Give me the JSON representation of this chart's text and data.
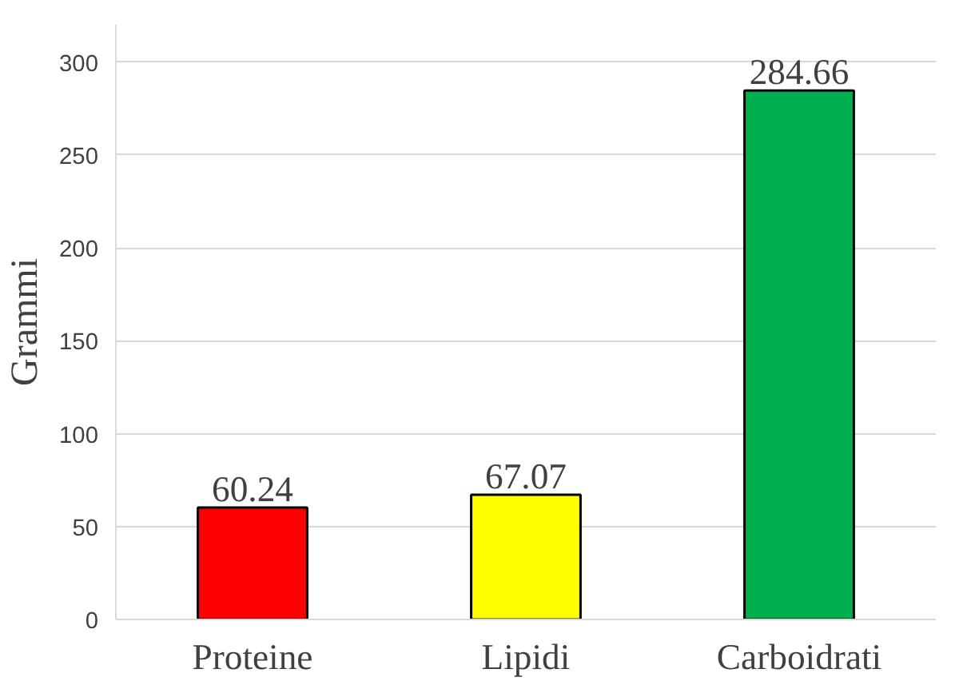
{
  "chart_data": {
    "type": "bar",
    "ylabel": "Grammi",
    "categories": [
      "Proteine",
      "Lipidi",
      "Carboidrati"
    ],
    "values": [
      60.24,
      67.07,
      284.66
    ],
    "colors": [
      "#ff0000",
      "#ffff00",
      "#00b050"
    ],
    "ylim": [
      0,
      320
    ],
    "yticks": [
      0,
      50,
      100,
      150,
      200,
      250,
      300
    ],
    "grid": "y",
    "data_labels": true
  }
}
